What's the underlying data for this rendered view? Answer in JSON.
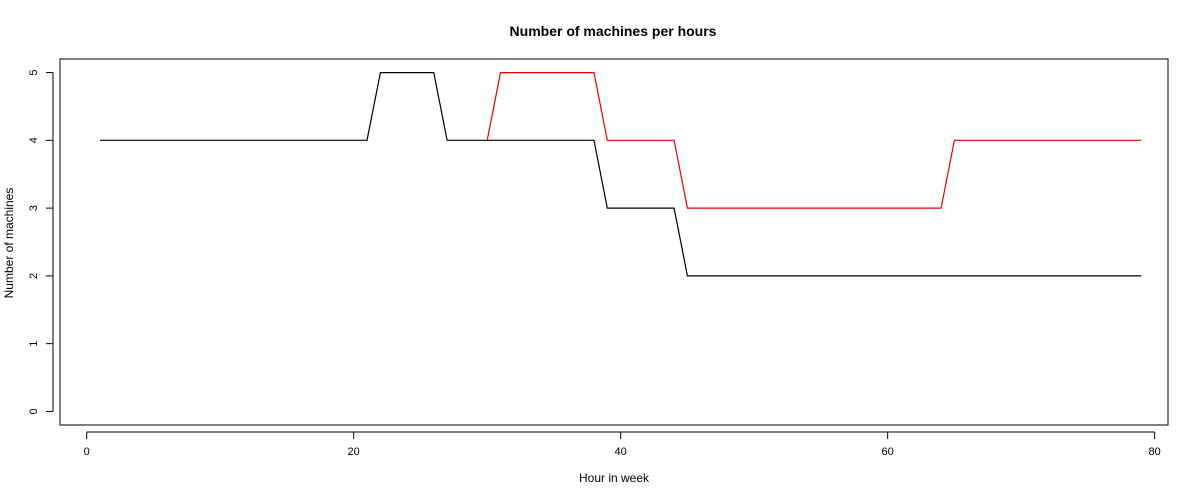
{
  "chart_data": {
    "type": "line",
    "title": "Number of machines per hours",
    "xlabel": "Hour in week",
    "ylabel": "Number of machines",
    "xlim": [
      -2,
      81
    ],
    "ylim": [
      -0.2,
      5.2
    ],
    "xticks": [
      "0",
      "20",
      "40",
      "60",
      "80"
    ],
    "yticks": [
      "0",
      "1",
      "2",
      "3",
      "4",
      "5"
    ],
    "grid": false,
    "legend": "none",
    "series": [
      {
        "color": "#000000",
        "points": [
          [
            1,
            4
          ],
          [
            21,
            4
          ],
          [
            22,
            5
          ],
          [
            26,
            5
          ],
          [
            27,
            4
          ],
          [
            38,
            4
          ],
          [
            39,
            3
          ],
          [
            44,
            3
          ],
          [
            45,
            2
          ],
          [
            79,
            2
          ]
        ]
      },
      {
        "color": "#e60000",
        "points": [
          [
            30,
            4
          ],
          [
            31,
            5
          ],
          [
            38,
            5
          ],
          [
            39,
            4
          ],
          [
            44,
            4
          ],
          [
            45,
            3
          ],
          [
            64,
            3
          ],
          [
            65,
            4
          ],
          [
            79,
            4
          ]
        ]
      }
    ]
  }
}
